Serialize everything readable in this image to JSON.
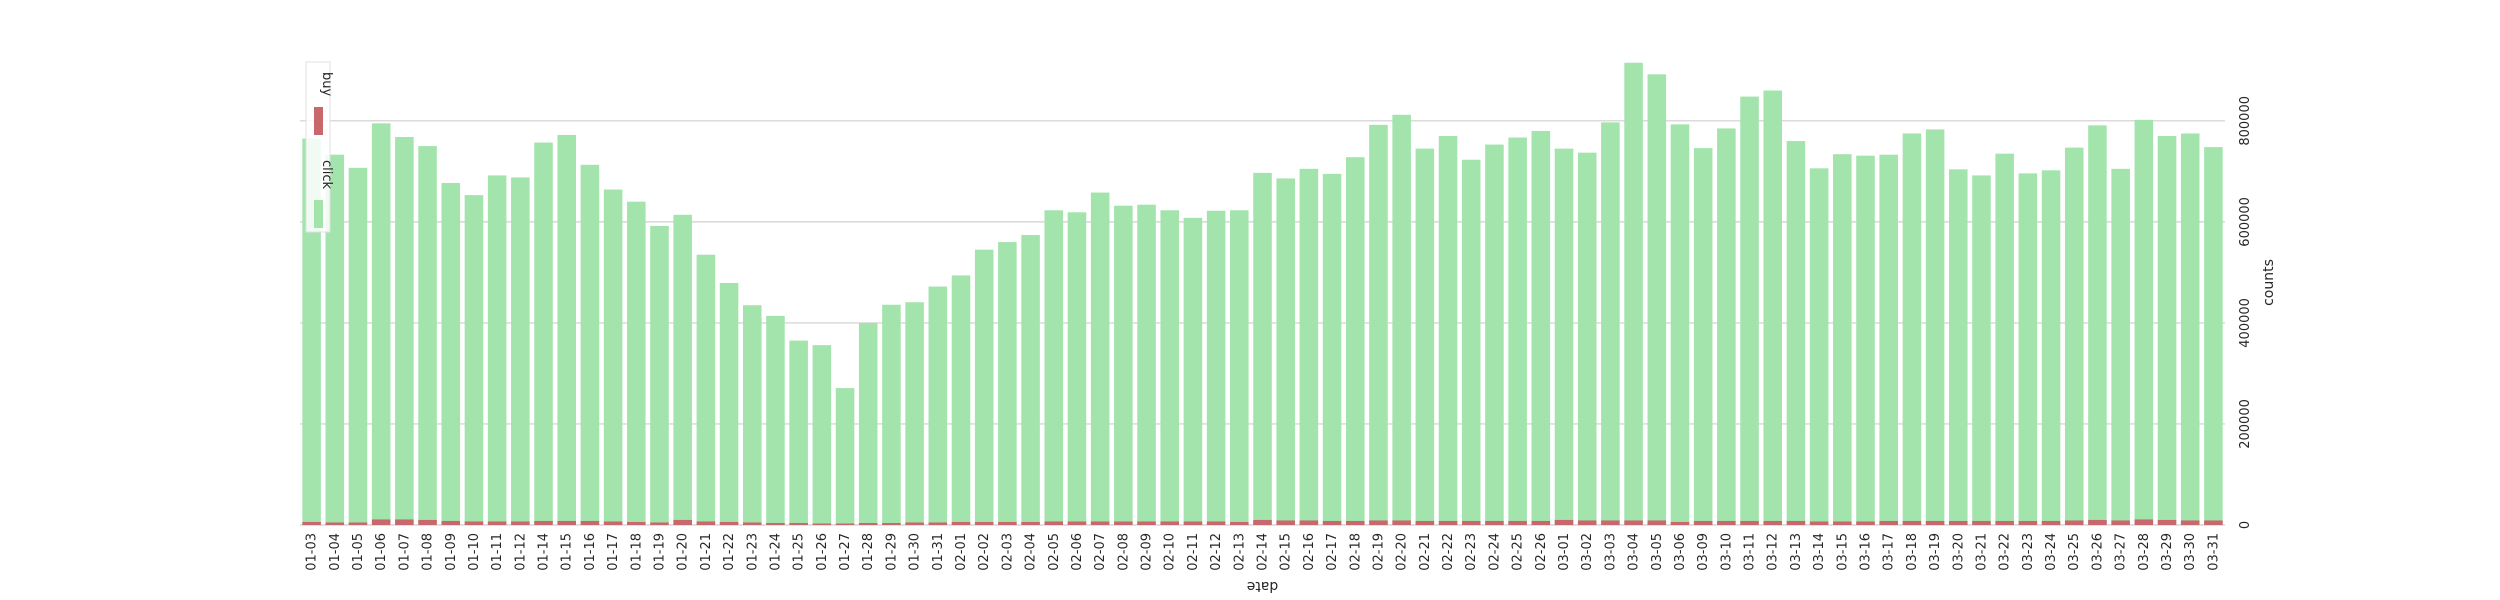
{
  "chart_data": {
    "type": "bar",
    "xlabel": "date",
    "ylabel": "counts",
    "ylim": [
      0,
      960000
    ],
    "yticks": [
      0,
      200000,
      400000,
      600000,
      800000
    ],
    "ytick_labels": [
      "0",
      "200000",
      "400000",
      "600000",
      "800000"
    ],
    "grid": "horizontal",
    "categories": [
      "01-03",
      "01-04",
      "01-05",
      "01-06",
      "01-07",
      "01-08",
      "01-09",
      "01-10",
      "01-11",
      "01-12",
      "01-14",
      "01-15",
      "01-16",
      "01-17",
      "01-18",
      "01-19",
      "01-20",
      "01-21",
      "01-22",
      "01-23",
      "01-24",
      "01-25",
      "01-26",
      "01-27",
      "01-28",
      "01-29",
      "01-30",
      "01-31",
      "02-01",
      "02-02",
      "02-03",
      "02-04",
      "02-05",
      "02-06",
      "02-07",
      "02-08",
      "02-09",
      "02-10",
      "02-11",
      "02-12",
      "02-13",
      "02-14",
      "02-15",
      "02-16",
      "02-17",
      "02-18",
      "02-19",
      "02-20",
      "02-21",
      "02-22",
      "02-23",
      "02-24",
      "02-25",
      "02-26",
      "03-01",
      "03-02",
      "03-03",
      "03-04",
      "03-05",
      "03-06",
      "03-09",
      "03-10",
      "03-11",
      "03-12",
      "03-13",
      "03-14",
      "03-15",
      "03-16",
      "03-17",
      "03-18",
      "03-19",
      "03-20",
      "03-21",
      "03-22",
      "03-23",
      "03-24",
      "03-25",
      "03-26",
      "03-27",
      "03-28",
      "03-29",
      "03-30",
      "03-31"
    ],
    "series": [
      {
        "name": "click",
        "color": "#a3e4ad",
        "values": [
          765000,
          733000,
          707000,
          795000,
          768000,
          750000,
          677000,
          653000,
          692000,
          688000,
          757000,
          772000,
          713000,
          664000,
          640000,
          592000,
          614000,
          535000,
          479000,
          435000,
          414000,
          365000,
          356000,
          271000,
          400000,
          436000,
          441000,
          472000,
          494000,
          545000,
          560000,
          574000,
          623000,
          619000,
          658000,
          632000,
          634000,
          623000,
          608000,
          622000,
          623000,
          697000,
          686000,
          705000,
          695000,
          728000,
          792000,
          812000,
          745000,
          770000,
          723000,
          753000,
          767000,
          780000,
          745000,
          737000,
          797000,
          915000,
          892000,
          793000,
          746000,
          785000,
          848000,
          860000,
          760000,
          706000,
          734000,
          731000,
          733000,
          775000,
          783000,
          704000,
          692000,
          735000,
          696000,
          702000,
          747000,
          791000,
          705000,
          802000,
          770000,
          775000,
          748000
        ]
      },
      {
        "name": "buy",
        "color": "#c8686d",
        "values": [
          6000,
          5000,
          5000,
          11000,
          11000,
          10000,
          8000,
          7000,
          7000,
          7000,
          8000,
          8000,
          8000,
          7000,
          6000,
          5000,
          10000,
          7000,
          6000,
          5000,
          4000,
          4000,
          3000,
          3000,
          4000,
          4000,
          5000,
          5000,
          6000,
          6000,
          6000,
          6000,
          7000,
          7000,
          7000,
          7000,
          7000,
          7000,
          7000,
          7000,
          6000,
          10000,
          9000,
          9000,
          8000,
          8000,
          9000,
          9000,
          8000,
          8000,
          8000,
          8000,
          8000,
          8000,
          10000,
          9000,
          9000,
          9000,
          9000,
          6000,
          8000,
          8000,
          8000,
          8000,
          8000,
          7000,
          7000,
          7000,
          8000,
          8000,
          8000,
          8000,
          8000,
          8000,
          8000,
          8000,
          9000,
          10000,
          9000,
          11000,
          10000,
          9000,
          9000
        ]
      }
    ],
    "legend": {
      "position": "top-left",
      "orientation": "rotated",
      "entries": [
        "buy",
        "click"
      ]
    }
  }
}
